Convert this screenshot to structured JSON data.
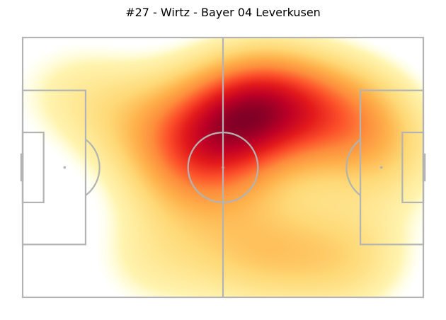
{
  "chart_data": {
    "type": "heatmap",
    "title": "#27 - Wirtz - Bayer 04 Leverkusen",
    "xlabel": "",
    "ylabel": "",
    "pitch": {
      "length": 105,
      "width": 68,
      "line_color": "#b3b3b3",
      "background": "#ffffff"
    },
    "grid": false,
    "legend": "none",
    "colormap": [
      "#ffffcc",
      "#ffeda0",
      "#fed976",
      "#feb24c",
      "#fd8d3c",
      "#fc4e2a",
      "#e31a1c",
      "#bd0026",
      "#800026"
    ],
    "density_peaks": [
      {
        "x": 64,
        "y": 17,
        "intensity": 1.0
      },
      {
        "x": 52,
        "y": 24,
        "intensity": 0.75
      },
      {
        "x": 85,
        "y": 21,
        "intensity": 0.7
      },
      {
        "x": 45,
        "y": 35,
        "intensity": 0.55
      },
      {
        "x": 62,
        "y": 56,
        "intensity": 0.5
      },
      {
        "x": 85,
        "y": 58,
        "intensity": 0.45
      },
      {
        "x": 30,
        "y": 22,
        "intensity": 0.35
      },
      {
        "x": 12,
        "y": 14,
        "intensity": 0.25
      },
      {
        "x": 35,
        "y": 58,
        "intensity": 0.3
      },
      {
        "x": 97,
        "y": 32,
        "intensity": 0.3
      }
    ]
  }
}
